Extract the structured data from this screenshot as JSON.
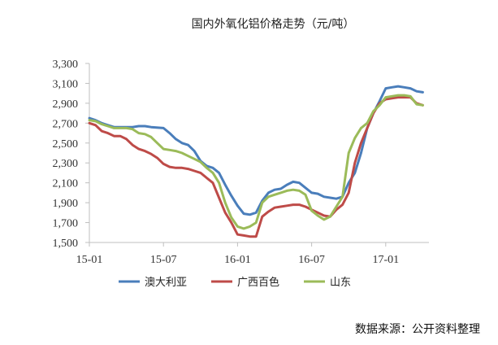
{
  "chart_data": {
    "type": "line",
    "title": "国内外氧化铝价格走势（元/吨）",
    "xlabel": "",
    "ylabel": "",
    "ylim": [
      1500,
      3300
    ],
    "yticks": [
      1500,
      1700,
      1900,
      2100,
      2300,
      2500,
      2700,
      2900,
      3100,
      3300
    ],
    "ytick_labels": [
      "1,500",
      "1,700",
      "1,900",
      "2,100",
      "2,300",
      "2,500",
      "2,700",
      "2,900",
      "3,100",
      "3,300"
    ],
    "xlim": [
      0,
      27.5
    ],
    "xticks": [
      0,
      6,
      12,
      18,
      24
    ],
    "xtick_labels": [
      "15-01",
      "15-07",
      "16-01",
      "16-07",
      "17-01"
    ],
    "legend_position": "bottom",
    "grid": false,
    "series": [
      {
        "name": "澳大利亚",
        "color": "#4a7ebb",
        "points": [
          [
            0,
            2750
          ],
          [
            0.5,
            2730
          ],
          [
            1,
            2700
          ],
          [
            1.5,
            2680
          ],
          [
            2,
            2660
          ],
          [
            3,
            2660
          ],
          [
            3.5,
            2660
          ],
          [
            4,
            2670
          ],
          [
            4.5,
            2670
          ],
          [
            5,
            2660
          ],
          [
            6,
            2650
          ],
          [
            6.5,
            2600
          ],
          [
            7,
            2540
          ],
          [
            7.5,
            2500
          ],
          [
            8,
            2480
          ],
          [
            8.5,
            2420
          ],
          [
            9,
            2320
          ],
          [
            9.5,
            2270
          ],
          [
            10,
            2250
          ],
          [
            10.5,
            2200
          ],
          [
            11,
            2080
          ],
          [
            11.5,
            1970
          ],
          [
            12,
            1870
          ],
          [
            12.5,
            1790
          ],
          [
            13,
            1780
          ],
          [
            13.5,
            1800
          ],
          [
            14,
            1920
          ],
          [
            14.5,
            2000
          ],
          [
            15,
            2030
          ],
          [
            15.5,
            2040
          ],
          [
            16,
            2080
          ],
          [
            16.5,
            2110
          ],
          [
            17,
            2100
          ],
          [
            17.5,
            2050
          ],
          [
            18,
            2000
          ],
          [
            18.5,
            1990
          ],
          [
            19,
            1960
          ],
          [
            19.5,
            1950
          ],
          [
            20,
            1940
          ],
          [
            20.5,
            1960
          ],
          [
            21,
            2100
          ],
          [
            21.5,
            2200
          ],
          [
            22,
            2400
          ],
          [
            22.5,
            2650
          ],
          [
            23,
            2800
          ],
          [
            23.5,
            2920
          ],
          [
            24,
            3050
          ],
          [
            24.5,
            3060
          ],
          [
            25,
            3070
          ],
          [
            25.5,
            3060
          ],
          [
            26,
            3050
          ],
          [
            26.5,
            3020
          ],
          [
            27,
            3010
          ]
        ]
      },
      {
        "name": "广西百色",
        "color": "#be4b48",
        "points": [
          [
            0,
            2700
          ],
          [
            0.5,
            2680
          ],
          [
            1,
            2620
          ],
          [
            1.5,
            2600
          ],
          [
            2,
            2570
          ],
          [
            2.5,
            2570
          ],
          [
            3,
            2540
          ],
          [
            3.5,
            2480
          ],
          [
            4,
            2440
          ],
          [
            4.5,
            2420
          ],
          [
            5,
            2390
          ],
          [
            5.5,
            2350
          ],
          [
            6,
            2290
          ],
          [
            6.5,
            2260
          ],
          [
            7,
            2250
          ],
          [
            7.5,
            2250
          ],
          [
            8,
            2240
          ],
          [
            8.5,
            2220
          ],
          [
            9,
            2200
          ],
          [
            9.5,
            2150
          ],
          [
            10,
            2100
          ],
          [
            10.5,
            1950
          ],
          [
            11,
            1800
          ],
          [
            11.5,
            1700
          ],
          [
            12,
            1580
          ],
          [
            12.5,
            1570
          ],
          [
            13,
            1560
          ],
          [
            13.5,
            1560
          ],
          [
            14,
            1760
          ],
          [
            14.5,
            1810
          ],
          [
            15,
            1850
          ],
          [
            15.5,
            1860
          ],
          [
            16,
            1870
          ],
          [
            16.5,
            1880
          ],
          [
            17,
            1880
          ],
          [
            17.5,
            1860
          ],
          [
            18,
            1830
          ],
          [
            18.5,
            1800
          ],
          [
            19,
            1770
          ],
          [
            19.5,
            1760
          ],
          [
            20,
            1830
          ],
          [
            20.5,
            1880
          ],
          [
            21,
            2000
          ],
          [
            21.5,
            2300
          ],
          [
            22,
            2500
          ],
          [
            22.5,
            2650
          ],
          [
            23,
            2800
          ],
          [
            23.5,
            2900
          ],
          [
            24,
            2940
          ],
          [
            24.5,
            2950
          ],
          [
            25,
            2960
          ],
          [
            25.5,
            2960
          ],
          [
            26,
            2960
          ],
          [
            26.5,
            2900
          ],
          [
            27,
            2880
          ]
        ]
      },
      {
        "name": "山东",
        "color": "#9bbb59",
        "points": [
          [
            0,
            2730
          ],
          [
            0.5,
            2720
          ],
          [
            1,
            2690
          ],
          [
            1.5,
            2670
          ],
          [
            2,
            2650
          ],
          [
            2.5,
            2650
          ],
          [
            3,
            2650
          ],
          [
            3.5,
            2640
          ],
          [
            4,
            2600
          ],
          [
            4.5,
            2590
          ],
          [
            5,
            2560
          ],
          [
            5.5,
            2500
          ],
          [
            6,
            2440
          ],
          [
            6.5,
            2430
          ],
          [
            7,
            2420
          ],
          [
            7.5,
            2400
          ],
          [
            8,
            2370
          ],
          [
            8.5,
            2340
          ],
          [
            9,
            2310
          ],
          [
            9.5,
            2250
          ],
          [
            10,
            2200
          ],
          [
            10.5,
            2100
          ],
          [
            11,
            1900
          ],
          [
            11.5,
            1750
          ],
          [
            12,
            1660
          ],
          [
            12.5,
            1640
          ],
          [
            13,
            1660
          ],
          [
            13.5,
            1700
          ],
          [
            14,
            1900
          ],
          [
            14.5,
            1960
          ],
          [
            15,
            1980
          ],
          [
            15.5,
            2000
          ],
          [
            16,
            2020
          ],
          [
            16.5,
            2030
          ],
          [
            17,
            2020
          ],
          [
            17.5,
            1980
          ],
          [
            18,
            1820
          ],
          [
            18.5,
            1770
          ],
          [
            19,
            1730
          ],
          [
            19.5,
            1760
          ],
          [
            20,
            1860
          ],
          [
            20.5,
            1960
          ],
          [
            21,
            2400
          ],
          [
            21.5,
            2550
          ],
          [
            22,
            2650
          ],
          [
            22.5,
            2700
          ],
          [
            23,
            2820
          ],
          [
            23.5,
            2880
          ],
          [
            24,
            2960
          ],
          [
            24.5,
            2970
          ],
          [
            25,
            2980
          ],
          [
            25.5,
            2980
          ],
          [
            26,
            2970
          ],
          [
            26.5,
            2890
          ],
          [
            27,
            2880
          ]
        ]
      }
    ]
  },
  "footer": {
    "source": "数据来源：公开资料整理"
  }
}
